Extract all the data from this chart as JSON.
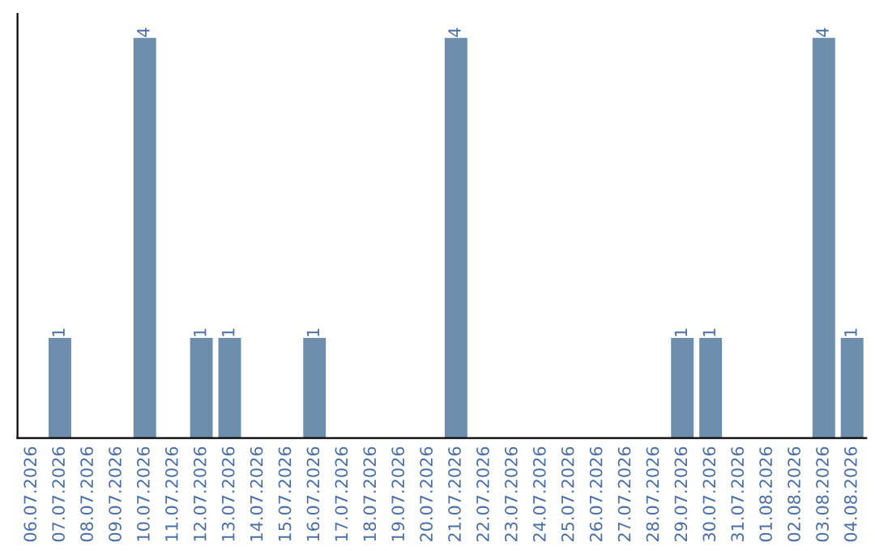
{
  "chart_data": {
    "type": "bar",
    "categories": [
      "06.07.2026",
      "07.07.2026",
      "08.07.2026",
      "09.07.2026",
      "10.07.2026",
      "11.07.2026",
      "12.07.2026",
      "13.07.2026",
      "14.07.2026",
      "15.07.2026",
      "16.07.2026",
      "17.07.2026",
      "18.07.2026",
      "19.07.2026",
      "20.07.2026",
      "21.07.2026",
      "22.07.2026",
      "23.07.2026",
      "24.07.2026",
      "25.07.2026",
      "26.07.2026",
      "27.07.2026",
      "28.07.2026",
      "29.07.2026",
      "30.07.2026",
      "31.07.2026",
      "01.08.2026",
      "02.08.2026",
      "03.08.2026",
      "04.08.2026"
    ],
    "values": [
      0,
      1,
      0,
      0,
      4,
      0,
      1,
      1,
      0,
      0,
      1,
      0,
      0,
      0,
      0,
      4,
      0,
      0,
      0,
      0,
      0,
      0,
      0,
      1,
      1,
      0,
      0,
      0,
      4,
      1
    ],
    "value_labels": [
      null,
      "1",
      null,
      null,
      "4",
      null,
      "1",
      "1",
      null,
      null,
      "1",
      null,
      null,
      null,
      null,
      "4",
      null,
      null,
      null,
      null,
      null,
      null,
      null,
      "1",
      "1",
      null,
      null,
      null,
      "4",
      "1"
    ],
    "color": "#6d8eac",
    "tick_labels": "x",
    "grid": false,
    "legend": false
  }
}
